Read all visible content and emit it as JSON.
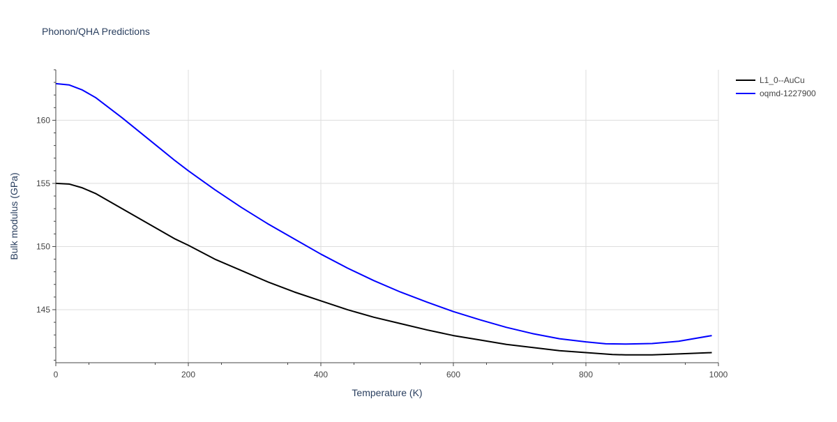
{
  "chart_data": {
    "type": "line",
    "title": "Phonon/QHA Predictions",
    "xlabel": "Temperature (K)",
    "ylabel": "Bulk modulus (GPa)",
    "xlim": [
      0,
      1000
    ],
    "ylim": [
      140.8,
      164.0
    ],
    "x_ticks": [
      0,
      200,
      400,
      600,
      800,
      1000
    ],
    "x_tick_labels": [
      "0",
      "200",
      "400",
      "600",
      "800",
      "1000"
    ],
    "y_ticks": [
      145,
      150,
      155,
      160
    ],
    "y_tick_labels": [
      "145",
      "150",
      "155",
      "160"
    ],
    "grid": true,
    "legend_position": "top-right",
    "series": [
      {
        "name": "L1_0--AuCu",
        "color": "#000000",
        "x": [
          0,
          20,
          40,
          60,
          80,
          100,
          120,
          140,
          160,
          180,
          200,
          240,
          280,
          320,
          360,
          400,
          440,
          480,
          520,
          560,
          600,
          640,
          680,
          720,
          760,
          800,
          840,
          860,
          900,
          940,
          990
        ],
        "y": [
          155.0,
          154.95,
          154.65,
          154.2,
          153.6,
          153.0,
          152.4,
          151.8,
          151.2,
          150.6,
          150.1,
          149.0,
          148.1,
          147.2,
          146.4,
          145.7,
          145.0,
          144.4,
          143.9,
          143.4,
          142.95,
          142.6,
          142.25,
          142.0,
          141.75,
          141.6,
          141.45,
          141.42,
          141.42,
          141.5,
          141.6
        ]
      },
      {
        "name": "oqmd-1227900",
        "color": "#0000ff",
        "x": [
          0,
          20,
          40,
          60,
          80,
          100,
          120,
          140,
          160,
          180,
          200,
          240,
          280,
          320,
          360,
          400,
          440,
          480,
          520,
          560,
          600,
          640,
          680,
          720,
          760,
          800,
          830,
          860,
          900,
          940,
          990
        ],
        "y": [
          162.9,
          162.8,
          162.4,
          161.8,
          161.0,
          160.2,
          159.35,
          158.5,
          157.65,
          156.8,
          156.0,
          154.5,
          153.1,
          151.8,
          150.6,
          149.4,
          148.3,
          147.3,
          146.4,
          145.6,
          144.85,
          144.2,
          143.6,
          143.1,
          142.7,
          142.45,
          142.3,
          142.28,
          142.32,
          142.5,
          142.95
        ]
      }
    ]
  }
}
